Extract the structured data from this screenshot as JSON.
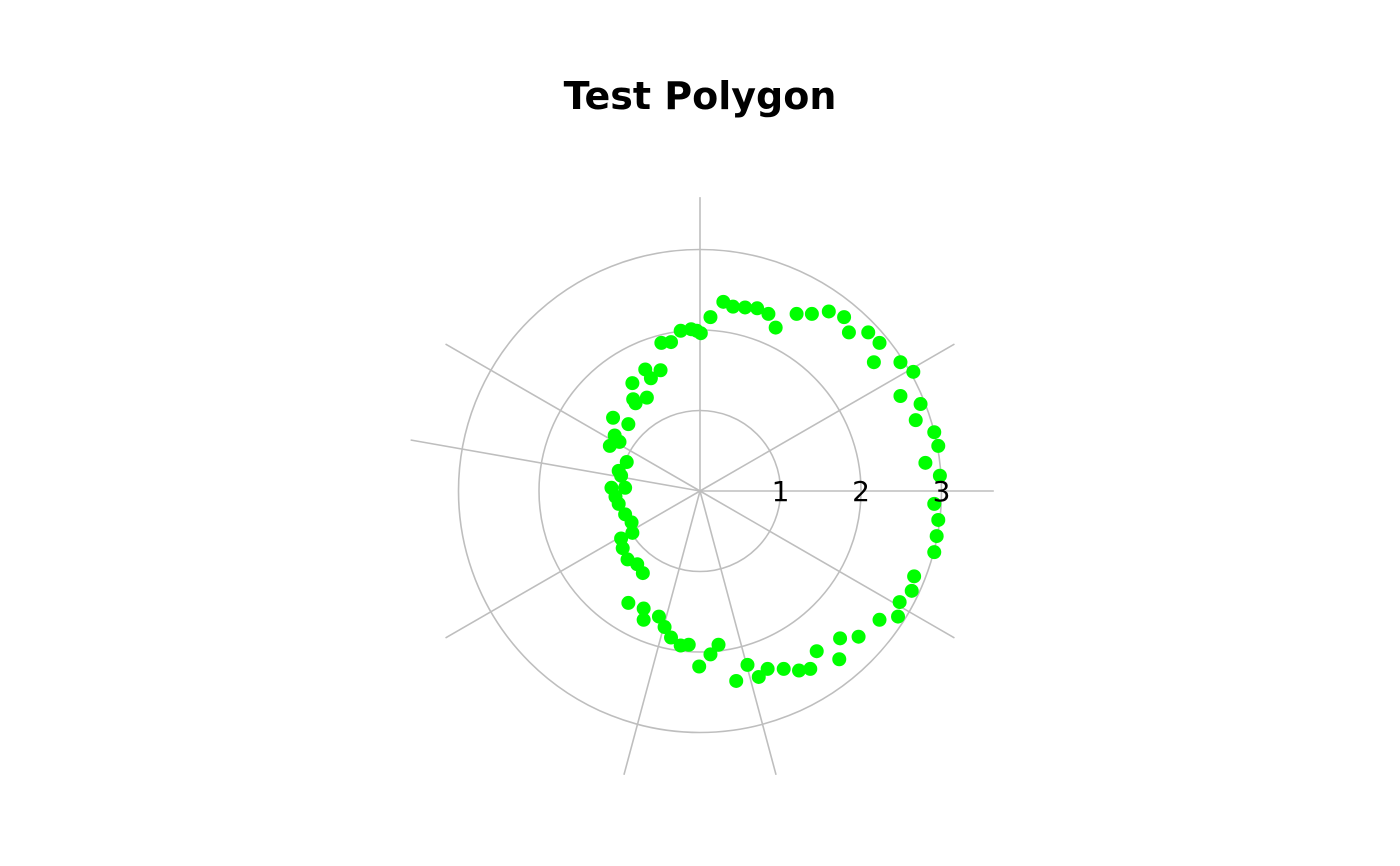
{
  "chart_data": {
    "type": "scatter",
    "coordinate_system": "polar",
    "title": "Test Polygon",
    "radial_ticks": [
      "1",
      "2",
      "3"
    ],
    "radial_tick_values": [
      1,
      2,
      3
    ],
    "radial_range": [
      0,
      3
    ],
    "angular_spokes_deg": [
      0,
      30,
      90,
      150,
      170,
      210,
      255,
      285,
      330
    ],
    "grid": true,
    "point_color": "#00ff00",
    "grid_color": "#bebebe",
    "series": [
      {
        "points_xy": [
          [
            0.13,
            2.16
          ],
          [
            0.29,
            2.35
          ],
          [
            0.41,
            2.29
          ],
          [
            0.56,
            2.28
          ],
          [
            0.71,
            2.27
          ],
          [
            0.85,
            2.2
          ],
          [
            0.94,
            2.03
          ],
          [
            1.2,
            2.2
          ],
          [
            1.39,
            2.2
          ],
          [
            1.6,
            2.23
          ],
          [
            1.79,
            2.16
          ],
          [
            1.85,
            1.97
          ],
          [
            2.09,
            1.97
          ],
          [
            2.23,
            1.84
          ],
          [
            2.16,
            1.6
          ],
          [
            2.49,
            1.6
          ],
          [
            2.65,
            1.48
          ],
          [
            2.49,
            1.18
          ],
          [
            2.74,
            1.08
          ],
          [
            2.68,
            0.88
          ],
          [
            2.91,
            0.73
          ],
          [
            2.96,
            0.56
          ],
          [
            2.8,
            0.35
          ],
          [
            2.98,
            0.19
          ],
          [
            2.91,
            -0.16
          ],
          [
            2.96,
            -0.36
          ],
          [
            2.94,
            -0.56
          ],
          [
            2.91,
            -0.76
          ],
          [
            2.66,
            -1.06
          ],
          [
            2.48,
            -1.38
          ],
          [
            2.63,
            -1.24
          ],
          [
            2.46,
            -1.56
          ],
          [
            2.23,
            -1.6
          ],
          [
            1.97,
            -1.81
          ],
          [
            1.74,
            -1.83
          ],
          [
            1.73,
            -2.09
          ],
          [
            1.45,
            -1.99
          ],
          [
            1.37,
            -2.21
          ],
          [
            1.23,
            -2.23
          ],
          [
            1.04,
            -2.21
          ],
          [
            0.84,
            -2.21
          ],
          [
            0.73,
            -2.31
          ],
          [
            0.59,
            -2.16
          ],
          [
            0.45,
            -2.36
          ],
          [
            0.23,
            -1.91
          ],
          [
            0.13,
            -2.03
          ],
          [
            -0.01,
            -2.18
          ],
          [
            -0.14,
            -1.91
          ],
          [
            -0.24,
            -1.92
          ],
          [
            -0.36,
            -1.82
          ],
          [
            -0.44,
            -1.69
          ],
          [
            -0.51,
            -1.56
          ],
          [
            -0.7,
            -1.46
          ],
          [
            -0.7,
            -1.6
          ],
          [
            -0.89,
            -1.39
          ],
          [
            -0.71,
            -1.02
          ],
          [
            -0.78,
            -0.91
          ],
          [
            -0.9,
            -0.85
          ],
          [
            -0.96,
            -0.71
          ],
          [
            -0.98,
            -0.59
          ],
          [
            -0.84,
            -0.52
          ],
          [
            -0.85,
            -0.39
          ],
          [
            -0.93,
            -0.29
          ],
          [
            -1.01,
            -0.16
          ],
          [
            -1.05,
            -0.07
          ],
          [
            -1.1,
            0.04
          ],
          [
            -0.93,
            0.04
          ],
          [
            -0.98,
            0.19
          ],
          [
            -0.91,
            0.36
          ],
          [
            -1.01,
            0.25
          ],
          [
            -1.0,
            0.61
          ],
          [
            -1.06,
            0.69
          ],
          [
            -1.12,
            0.56
          ],
          [
            -1.08,
            0.91
          ],
          [
            -0.89,
            0.83
          ],
          [
            -0.8,
            1.09
          ],
          [
            -0.66,
            1.16
          ],
          [
            -0.84,
            1.34
          ],
          [
            -0.68,
            1.51
          ],
          [
            -0.61,
            1.4
          ],
          [
            -0.49,
            1.5
          ],
          [
            -0.48,
            1.84
          ],
          [
            -0.36,
            1.85
          ],
          [
            -0.24,
            1.99
          ],
          [
            -0.11,
            2.01
          ],
          [
            -0.04,
            1.99
          ],
          [
            0.01,
            1.96
          ],
          [
            -0.83,
            1.14
          ]
        ]
      }
    ]
  }
}
